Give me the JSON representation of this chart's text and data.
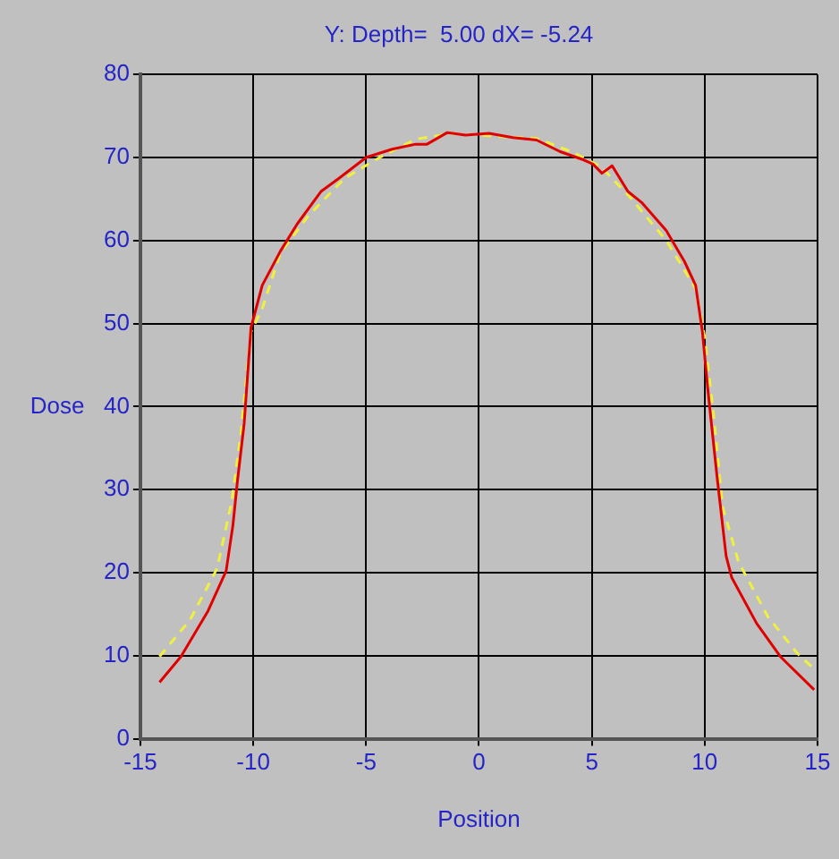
{
  "chart_data": {
    "type": "line",
    "title": "Y: Depth=  5.00 dX= -5.24",
    "xlabel": "Position",
    "ylabel": "Dose",
    "xlim": [
      -15,
      15
    ],
    "xticks": [
      -15,
      -10,
      -5,
      0,
      5,
      10,
      15
    ],
    "ylim": [
      0,
      80
    ],
    "yticks": [
      0,
      10,
      20,
      30,
      40,
      50,
      60,
      70,
      80
    ],
    "grid": true,
    "legend": false,
    "marker": "none",
    "series": [
      {
        "color": "#e00000",
        "line_style": "solid",
        "x": [
          -14.15,
          -13.2,
          -12.0,
          -11.2,
          -10.9,
          -10.7,
          -10.4,
          -10.1,
          -9.6,
          -8.8,
          -8.05,
          -7.0,
          -6.2,
          -5.0,
          -3.85,
          -2.8,
          -2.3,
          -1.4,
          -0.6,
          0.45,
          1.5,
          2.55,
          3.6,
          4.65,
          5.05,
          5.45,
          5.9,
          6.6,
          7.2,
          8.3,
          9.1,
          9.6,
          9.9,
          10.15,
          10.55,
          10.95,
          11.2,
          12.3,
          13.35,
          14.85
        ],
        "values": [
          6.8,
          9.9,
          15.4,
          20.2,
          25.7,
          31,
          38,
          49.5,
          54.6,
          58.7,
          62,
          65.9,
          67.5,
          70,
          71,
          71.6,
          71.6,
          73,
          72.7,
          72.9,
          72.4,
          72.1,
          70.7,
          69.7,
          69.2,
          68.1,
          69.0,
          65.9,
          64.6,
          61.2,
          57.5,
          54.6,
          49,
          41.8,
          31.5,
          22,
          19.4,
          13.9,
          9.9,
          5.9
        ]
      },
      {
        "color": "#f0f040",
        "line_style": "dashed",
        "x": [
          -14.15,
          -12.8,
          -11.6,
          -10.95,
          -10.55,
          -10.1,
          -9.6,
          -8.8,
          -7.55,
          -5.95,
          -4.4,
          -2.8,
          -1.2,
          0.45,
          2.55,
          4.1,
          5.4,
          6.7,
          8.3,
          9.6,
          10.0,
          10.4,
          10.8,
          11.5,
          12.8,
          14.1,
          14.85
        ],
        "values": [
          9.9,
          14.3,
          20.5,
          28.6,
          36.7,
          49,
          51.8,
          58.5,
          63,
          67.5,
          70,
          72.2,
          72.9,
          72.6,
          72.3,
          70.7,
          68.9,
          65.2,
          60,
          54.2,
          48.4,
          38.8,
          27.9,
          21.3,
          14.7,
          10.3,
          8.4
        ]
      }
    ]
  }
}
